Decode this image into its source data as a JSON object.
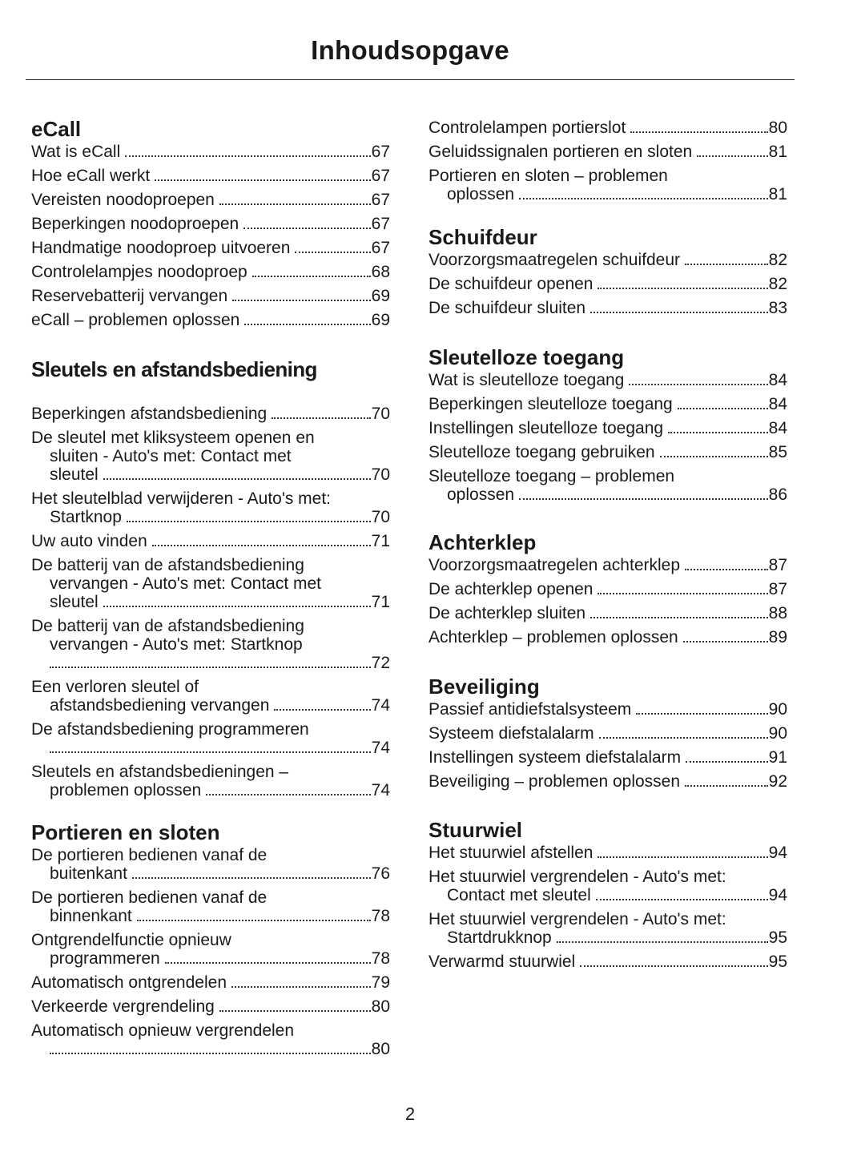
{
  "title": "Inhoudsopgave",
  "page_number": "2",
  "left": [
    {
      "heading": "eCall",
      "entries": [
        {
          "lines": [
            "Wat is eCall"
          ],
          "page": "67"
        },
        {
          "lines": [
            "Hoe eCall werkt"
          ],
          "page": "67"
        },
        {
          "lines": [
            "Vereisten noodoproepen"
          ],
          "page": "67"
        },
        {
          "lines": [
            "Beperkingen noodoproepen"
          ],
          "page": "67"
        },
        {
          "lines": [
            "Handmatige noodoproep uitvoeren"
          ],
          "page": "67"
        },
        {
          "lines": [
            "Controlelampjes noodoproep"
          ],
          "page": "68"
        },
        {
          "lines": [
            "Reservebatterij vervangen"
          ],
          "page": "69"
        },
        {
          "lines": [
            "eCall – problemen oplossen"
          ],
          "page": "69"
        }
      ]
    },
    {
      "heading": "Sleutels en afstandsbediening",
      "entries": [
        {
          "lines": [
            "Beperkingen afstandsbediening"
          ],
          "page": "70"
        },
        {
          "lines": [
            "De sleutel met kliksysteem openen en",
            "sluiten - Auto's met: Contact met",
            "sleutel"
          ],
          "page": "70"
        },
        {
          "lines": [
            "Het sleutelblad verwijderen - Auto's met:",
            "Startknop"
          ],
          "page": "70"
        },
        {
          "lines": [
            "Uw auto vinden"
          ],
          "page": "71"
        },
        {
          "lines": [
            "De batterij van de afstandsbediening",
            "vervangen - Auto's met: Contact met",
            "sleutel"
          ],
          "page": "71"
        },
        {
          "lines": [
            "De batterij van de afstandsbediening",
            "vervangen - Auto's met: Startknop",
            ""
          ],
          "page": "72"
        },
        {
          "lines": [
            "Een verloren sleutel of",
            "afstandsbediening vervangen"
          ],
          "page": "74"
        },
        {
          "lines": [
            "De afstandsbediening programmeren",
            ""
          ],
          "page": "74"
        },
        {
          "lines": [
            "Sleutels en afstandsbedieningen –",
            "problemen oplossen"
          ],
          "page": "74"
        }
      ]
    },
    {
      "heading": "Portieren en sloten",
      "entries": [
        {
          "lines": [
            "De portieren bedienen vanaf de",
            "buitenkant"
          ],
          "page": "76"
        },
        {
          "lines": [
            "De portieren bedienen vanaf de",
            "binnenkant"
          ],
          "page": "78"
        },
        {
          "lines": [
            "Ontgrendelfunctie opnieuw",
            "programmeren"
          ],
          "page": "78"
        },
        {
          "lines": [
            "Automatisch ontgrendelen"
          ],
          "page": "79"
        },
        {
          "lines": [
            "Verkeerde vergrendeling"
          ],
          "page": "80"
        },
        {
          "lines": [
            "Automatisch opnieuw vergrendelen",
            ""
          ],
          "page": "80"
        }
      ]
    }
  ],
  "right": [
    {
      "heading": "",
      "entries": [
        {
          "lines": [
            "Controlelampen portierslot"
          ],
          "page": "80"
        },
        {
          "lines": [
            "Geluidssignalen portieren en sloten"
          ],
          "page": "81"
        },
        {
          "lines": [
            "Portieren en sloten – problemen",
            "oplossen"
          ],
          "page": "81"
        }
      ]
    },
    {
      "heading": "Schuifdeur",
      "entries": [
        {
          "lines": [
            "Voorzorgsmaatregelen schuifdeur"
          ],
          "page": "82"
        },
        {
          "lines": [
            "De schuifdeur openen"
          ],
          "page": "82"
        },
        {
          "lines": [
            "De schuifdeur sluiten"
          ],
          "page": "83"
        }
      ]
    },
    {
      "heading": "Sleutelloze toegang",
      "entries": [
        {
          "lines": [
            "Wat is sleutelloze toegang"
          ],
          "page": "84"
        },
        {
          "lines": [
            "Beperkingen sleutelloze toegang"
          ],
          "page": "84"
        },
        {
          "lines": [
            "Instellingen sleutelloze toegang"
          ],
          "page": "84"
        },
        {
          "lines": [
            "Sleutelloze toegang gebruiken"
          ],
          "page": "85"
        },
        {
          "lines": [
            "Sleutelloze toegang – problemen",
            "oplossen"
          ],
          "page": "86"
        }
      ]
    },
    {
      "heading": "Achterklep",
      "entries": [
        {
          "lines": [
            "Voorzorgsmaatregelen achterklep"
          ],
          "page": "87"
        },
        {
          "lines": [
            "De achterklep openen"
          ],
          "page": "87"
        },
        {
          "lines": [
            "De achterklep sluiten"
          ],
          "page": "88"
        },
        {
          "lines": [
            "Achterklep – problemen oplossen"
          ],
          "page": "89"
        }
      ]
    },
    {
      "heading": "Beveiliging",
      "entries": [
        {
          "lines": [
            "Passief antidiefstalsysteem"
          ],
          "page": "90"
        },
        {
          "lines": [
            "Systeem diefstalalarm"
          ],
          "page": "90"
        },
        {
          "lines": [
            "Instellingen systeem diefstalalarm"
          ],
          "page": "91"
        },
        {
          "lines": [
            "Beveiliging – problemen oplossen"
          ],
          "page": "92"
        }
      ]
    },
    {
      "heading": "Stuurwiel",
      "entries": [
        {
          "lines": [
            "Het stuurwiel afstellen"
          ],
          "page": "94"
        },
        {
          "lines": [
            "Het stuurwiel vergrendelen - Auto's met:",
            "Contact met sleutel"
          ],
          "page": "94"
        },
        {
          "lines": [
            "Het stuurwiel vergrendelen - Auto's met:",
            "Startdrukknop"
          ],
          "page": "95"
        },
        {
          "lines": [
            "Verwarmd stuurwiel"
          ],
          "page": "95"
        }
      ]
    }
  ]
}
